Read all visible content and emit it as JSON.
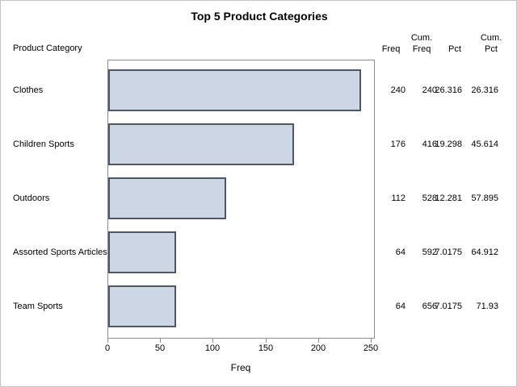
{
  "title": "Top 5 Product Categories",
  "headers": {
    "category": "Product Category",
    "freq": "Freq",
    "cum_freq": "Cum.\nFreq",
    "pct": "Pct",
    "cum_pct": "Cum.\nPct"
  },
  "rows": [
    {
      "label": "Clothes",
      "freq": "240",
      "cum_freq": "240",
      "pct": "26.316",
      "cum_pct": "26.316"
    },
    {
      "label": "Children Sports",
      "freq": "176",
      "cum_freq": "416",
      "pct": "19.298",
      "cum_pct": "45.614"
    },
    {
      "label": "Outdoors",
      "freq": "112",
      "cum_freq": "528",
      "pct": "12.281",
      "cum_pct": "57.895"
    },
    {
      "label": "Assorted Sports Articles",
      "freq": "64",
      "cum_freq": "592",
      "pct": "7.0175",
      "cum_pct": "64.912"
    },
    {
      "label": "Team Sports",
      "freq": "64",
      "cum_freq": "656",
      "pct": "7.0175",
      "cum_pct": "71.93"
    }
  ],
  "axis": {
    "label": "Freq",
    "ticks": [
      "0",
      "50",
      "100",
      "150",
      "200",
      "250"
    ]
  },
  "colors": {
    "bar_fill": "#ccd6e4",
    "bar_border": "#4f5764",
    "frame": "#8d8d8d",
    "outer_border": "#c3c3c3"
  },
  "chart_data": {
    "type": "bar",
    "orientation": "horizontal",
    "title": "Top 5 Product Categories",
    "categories": [
      "Clothes",
      "Children Sports",
      "Outdoors",
      "Assorted Sports Articles",
      "Team Sports"
    ],
    "series": [
      {
        "name": "Freq",
        "values": [
          240,
          176,
          112,
          64,
          64
        ]
      },
      {
        "name": "Cum. Freq",
        "values": [
          240,
          416,
          528,
          592,
          656
        ]
      },
      {
        "name": "Pct",
        "values": [
          26.316,
          19.298,
          12.281,
          7.0175,
          7.0175
        ]
      },
      {
        "name": "Cum. Pct",
        "values": [
          26.316,
          45.614,
          57.895,
          64.912,
          71.93
        ]
      }
    ],
    "xlabel": "Freq",
    "ylabel": "Product Category",
    "xlim": [
      0,
      250
    ],
    "xticks": [
      0,
      50,
      100,
      150,
      200,
      250
    ],
    "grid": false,
    "legend": false
  }
}
